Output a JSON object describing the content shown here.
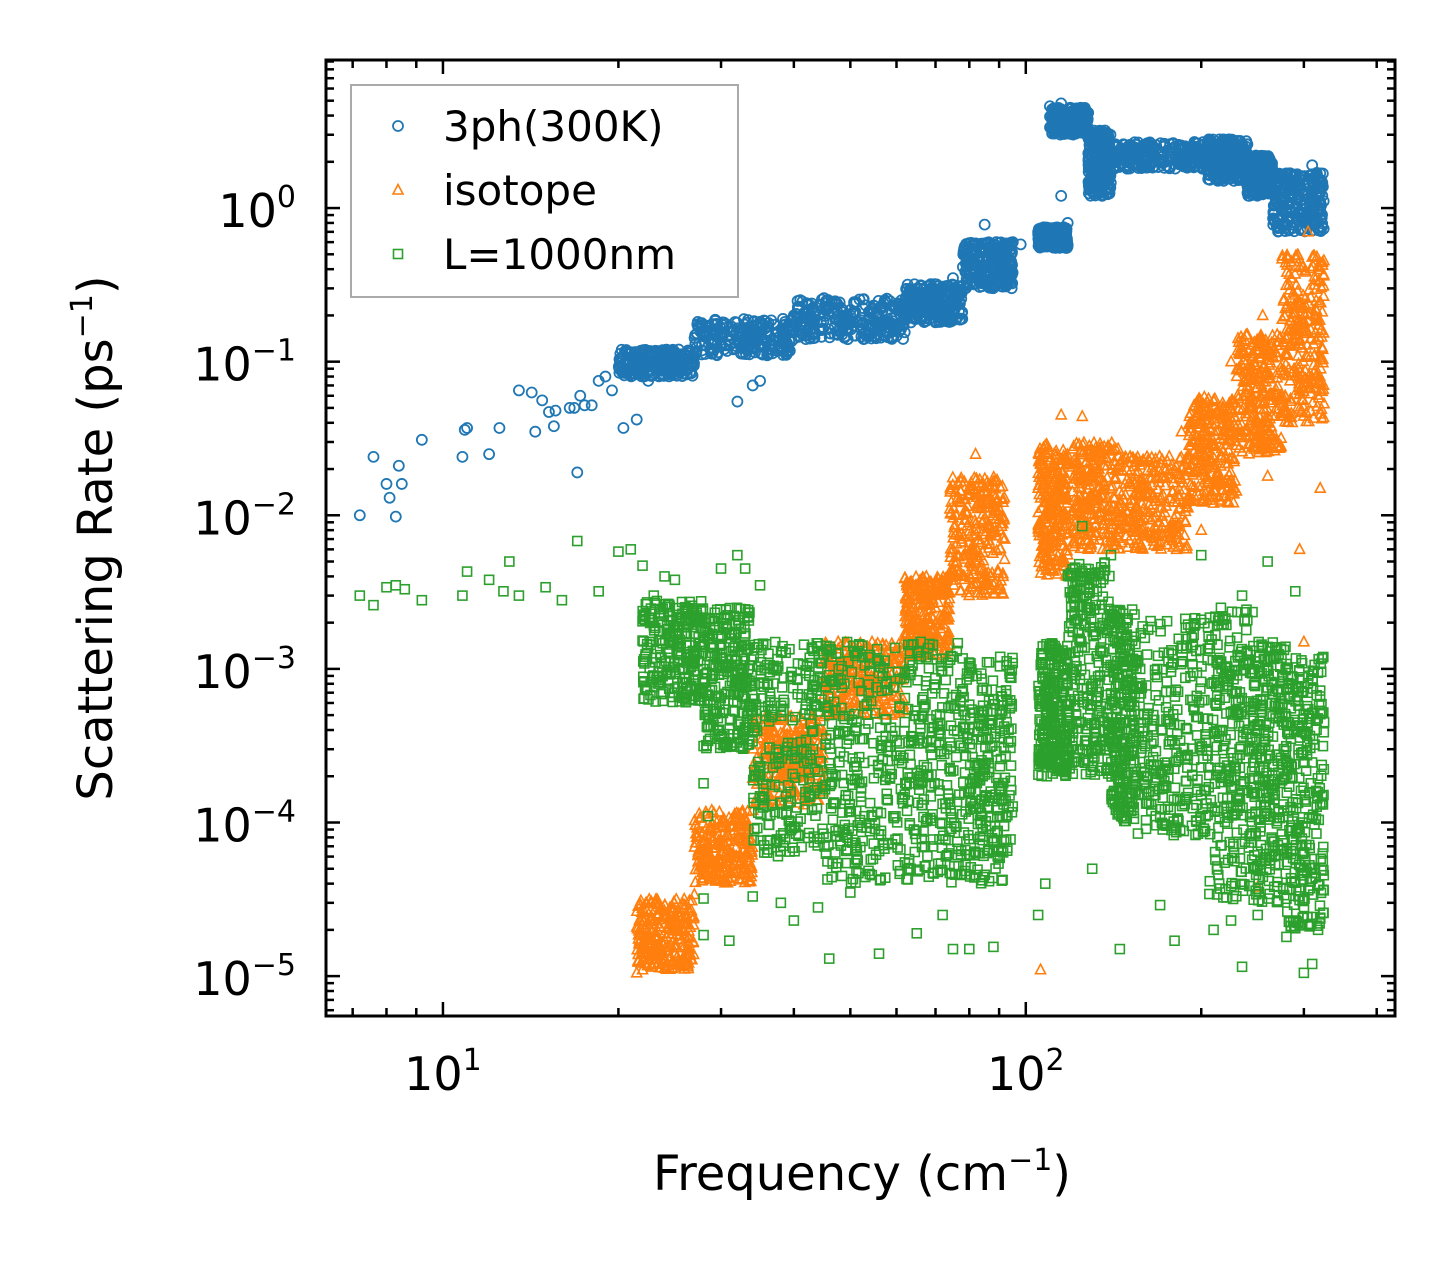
{
  "chart_data": {
    "type": "scatter",
    "title": "",
    "xlabel": "Frequency (cm",
    "xlabel_sup": "−1",
    "xlabel_end": ")",
    "ylabel": "Scattering Rate (ps",
    "ylabel_sup": "−1",
    "ylabel_end": ")",
    "xscale": "log",
    "yscale": "log",
    "xlim": [
      6.3,
      430
    ],
    "ylim": [
      5.5e-06,
      9.2
    ],
    "x_ticks": [
      {
        "value": 10,
        "base": "10",
        "exp": "1"
      },
      {
        "value": 100,
        "base": "10",
        "exp": "2"
      }
    ],
    "y_ticks": [
      {
        "value": 1,
        "base": "10",
        "exp": "0"
      },
      {
        "value": 0.1,
        "base": "10",
        "exp": "−1"
      },
      {
        "value": 0.01,
        "base": "10",
        "exp": "−2"
      },
      {
        "value": 0.001,
        "base": "10",
        "exp": "−3"
      },
      {
        "value": 0.0001,
        "base": "10",
        "exp": "−4"
      },
      {
        "value": 1e-05,
        "base": "10",
        "exp": "−5"
      }
    ],
    "legend_position": "top-left",
    "series": [
      {
        "name": "3ph(300K)",
        "marker": "circle",
        "color": "#1f77b4",
        "points": [
          [
            7.2,
            0.01
          ],
          [
            7.6,
            0.024
          ],
          [
            8.0,
            0.016
          ],
          [
            8.1,
            0.013
          ],
          [
            8.3,
            0.0098
          ],
          [
            8.4,
            0.021
          ],
          [
            8.5,
            0.016
          ],
          [
            9.2,
            0.031
          ],
          [
            10.8,
            0.024
          ],
          [
            10.9,
            0.036
          ],
          [
            11.0,
            0.037
          ],
          [
            12.0,
            0.025
          ],
          [
            12.5,
            0.037
          ],
          [
            13.5,
            0.065
          ],
          [
            14.2,
            0.063
          ],
          [
            14.4,
            0.035
          ],
          [
            14.8,
            0.056
          ],
          [
            15.2,
            0.047
          ],
          [
            15.6,
            0.048
          ],
          [
            15.5,
            0.038
          ],
          [
            16.5,
            0.05
          ],
          [
            16.8,
            0.05
          ],
          [
            17.2,
            0.06
          ],
          [
            17.5,
            0.052
          ],
          [
            18.0,
            0.052
          ],
          [
            17.0,
            0.019
          ],
          [
            18.5,
            0.075
          ],
          [
            19.0,
            0.08
          ],
          [
            19.5,
            0.065
          ],
          [
            20.4,
            0.037
          ],
          [
            21.5,
            0.042
          ],
          [
            22.5,
            0.075
          ],
          [
            24.0,
            0.09
          ],
          [
            26.0,
            0.11
          ],
          [
            29.0,
            0.13
          ],
          [
            32.0,
            0.055
          ],
          [
            34.0,
            0.07
          ],
          [
            35.0,
            0.075
          ],
          [
            36.0,
            0.17
          ],
          [
            40.0,
            0.2
          ],
          [
            45.0,
            0.22
          ],
          [
            50.0,
            0.2
          ],
          [
            55.0,
            0.23
          ],
          [
            60.0,
            0.2
          ],
          [
            65.0,
            0.25
          ],
          [
            70.0,
            0.29
          ],
          [
            75.0,
            0.35
          ],
          [
            80.0,
            0.45
          ],
          [
            85.0,
            0.78
          ],
          [
            90.0,
            0.55
          ],
          [
            95.0,
            0.6
          ],
          [
            98.0,
            0.58
          ],
          [
            105.0,
            0.7
          ],
          [
            108.0,
            0.6
          ],
          [
            112.0,
            0.65
          ],
          [
            115.0,
            1.2
          ],
          [
            118.0,
            0.8
          ],
          [
            110.0,
            4.6
          ],
          [
            115.0,
            4.8
          ],
          [
            125.0,
            3.5
          ],
          [
            130.0,
            2.8
          ],
          [
            135.0,
            1.6
          ],
          [
            150.0,
            2.5
          ],
          [
            165.0,
            2.0
          ],
          [
            180.0,
            2.5
          ],
          [
            200.0,
            2.1
          ],
          [
            215.0,
            2.8
          ],
          [
            225.0,
            1.8
          ],
          [
            240.0,
            2.6
          ],
          [
            255.0,
            1.4
          ],
          [
            270.0,
            1.1
          ],
          [
            290.0,
            1.3
          ],
          [
            305.0,
            0.95
          ],
          [
            310.0,
            1.9
          ],
          [
            320.0,
            1.1
          ]
        ],
        "bands": [
          [
            20,
            27,
            0.08,
            0.12
          ],
          [
            27,
            40,
            0.11,
            0.19
          ],
          [
            40,
            62,
            0.14,
            0.26
          ],
          [
            62,
            78,
            0.18,
            0.32
          ],
          [
            78,
            95,
            0.3,
            0.6
          ],
          [
            105,
            118,
            0.55,
            0.75
          ],
          [
            110,
            128,
            3.0,
            4.5
          ],
          [
            128,
            140,
            1.2,
            3.2
          ],
          [
            140,
            205,
            1.8,
            2.7
          ],
          [
            205,
            240,
            1.5,
            2.8
          ],
          [
            240,
            265,
            1.2,
            2.2
          ],
          [
            265,
            325,
            0.7,
            1.7
          ]
        ]
      },
      {
        "name": "isotope",
        "marker": "triangle",
        "color": "#ff7f0e",
        "points": [
          [
            21.5,
            1.05e-05
          ],
          [
            22.0,
            1.1e-05
          ],
          [
            23.0,
            1.4e-05
          ],
          [
            24.0,
            1.9e-05
          ],
          [
            25.0,
            2.4e-05
          ],
          [
            26.0,
            2.9e-05
          ],
          [
            27.0,
            3.4e-05
          ],
          [
            28.0,
            4.3e-05
          ],
          [
            29.0,
            5.5e-05
          ],
          [
            30.0,
            5.5e-05
          ],
          [
            31.0,
            6.5e-05
          ],
          [
            32.0,
            8e-05
          ],
          [
            33.0,
            9.5e-05
          ],
          [
            34.0,
            0.00012
          ],
          [
            36.0,
            0.00016
          ],
          [
            38.0,
            0.0002
          ],
          [
            40.0,
            0.00028
          ],
          [
            44.0,
            0.0004
          ],
          [
            50.0,
            0.0006
          ],
          [
            58.0,
            0.0011
          ],
          [
            64.0,
            0.0021
          ],
          [
            70.0,
            0.0032
          ],
          [
            75.0,
            0.006
          ],
          [
            80.0,
            0.009
          ],
          [
            82.0,
            0.025
          ],
          [
            88.0,
            0.012
          ],
          [
            92.0,
            0.007
          ],
          [
            106.0,
            1.1e-05
          ],
          [
            108.0,
            0.008
          ],
          [
            112.0,
            0.025
          ],
          [
            115.0,
            0.045
          ],
          [
            120.0,
            0.01
          ],
          [
            125.0,
            0.044
          ],
          [
            130.0,
            0.02
          ],
          [
            140.0,
            0.015
          ],
          [
            145.0,
            0.012
          ],
          [
            165.0,
            0.008
          ],
          [
            185.0,
            0.035
          ],
          [
            200.0,
            0.008
          ],
          [
            210.0,
            0.012
          ],
          [
            225.0,
            0.1
          ],
          [
            240.0,
            0.15
          ],
          [
            255.0,
            0.2
          ],
          [
            260.0,
            0.018
          ],
          [
            270.0,
            0.15
          ],
          [
            285.0,
            0.35
          ],
          [
            295.0,
            0.006
          ],
          [
            305.0,
            0.7
          ],
          [
            315.0,
            0.25
          ],
          [
            320.0,
            0.015
          ],
          [
            300.0,
            0.0015
          ],
          [
            250.0,
            3.8e-05
          ]
        ],
        "bands": [
          [
            21.5,
            27,
            1.1e-05,
            3.2e-05
          ],
          [
            27,
            34,
            4e-05,
            0.00012
          ],
          [
            34,
            45,
            0.00013,
            0.0005
          ],
          [
            45,
            62,
            0.0005,
            0.0015
          ],
          [
            62,
            74,
            0.0012,
            0.004
          ],
          [
            74,
            92,
            0.003,
            0.018
          ],
          [
            105,
            118,
            0.004,
            0.03
          ],
          [
            120,
            145,
            0.006,
            0.03
          ],
          [
            145,
            190,
            0.006,
            0.025
          ],
          [
            190,
            230,
            0.012,
            0.06
          ],
          [
            230,
            275,
            0.025,
            0.15
          ],
          [
            275,
            325,
            0.04,
            0.5
          ]
        ]
      },
      {
        "name": "L=1000nm",
        "marker": "square",
        "color": "#2ca02c",
        "points": [
          [
            7.2,
            0.003
          ],
          [
            7.6,
            0.0026
          ],
          [
            8.0,
            0.0034
          ],
          [
            8.3,
            0.0035
          ],
          [
            8.6,
            0.0033
          ],
          [
            9.2,
            0.0028
          ],
          [
            10.8,
            0.003
          ],
          [
            11.0,
            0.0043
          ],
          [
            12.0,
            0.0038
          ],
          [
            12.7,
            0.0032
          ],
          [
            13.0,
            0.005
          ],
          [
            13.5,
            0.003
          ],
          [
            15.0,
            0.0034
          ],
          [
            16.0,
            0.0028
          ],
          [
            17.0,
            0.0068
          ],
          [
            18.5,
            0.0032
          ],
          [
            20.0,
            0.0058
          ],
          [
            21.0,
            0.006
          ],
          [
            22.0,
            0.0047
          ],
          [
            23.0,
            0.003
          ],
          [
            24.0,
            0.004
          ],
          [
            25.0,
            0.0038
          ],
          [
            26.0,
            0.0025
          ],
          [
            27.0,
            0.0021
          ],
          [
            28.0,
            0.0015
          ],
          [
            28.0,
            0.00018
          ],
          [
            28.5,
            0.00011
          ],
          [
            28.0,
            3.2e-05
          ],
          [
            28.0,
            1.85e-05
          ],
          [
            31.0,
            1.7e-05
          ],
          [
            30.0,
            0.0045
          ],
          [
            32.0,
            0.0055
          ],
          [
            33.0,
            0.0045
          ],
          [
            35.0,
            0.0035
          ],
          [
            34.0,
            3.3e-05
          ],
          [
            38.0,
            3e-05
          ],
          [
            40.0,
            2.3e-05
          ],
          [
            44.0,
            2.8e-05
          ],
          [
            46.0,
            1.3e-05
          ],
          [
            50.0,
            3.5e-05
          ],
          [
            56.0,
            1.4e-05
          ],
          [
            65.0,
            1.9e-05
          ],
          [
            72.0,
            2.5e-05
          ],
          [
            75.0,
            1.5e-05
          ],
          [
            80.0,
            1.5e-05
          ],
          [
            88.0,
            1.55e-05
          ],
          [
            105.0,
            2.5e-05
          ],
          [
            108.0,
            4e-05
          ],
          [
            130.0,
            5e-05
          ],
          [
            145.0,
            1.5e-05
          ],
          [
            170.0,
            2.9e-05
          ],
          [
            180.0,
            1.7e-05
          ],
          [
            210.0,
            2e-05
          ],
          [
            225.0,
            2.3e-05
          ],
          [
            235.0,
            1.15e-05
          ],
          [
            250.0,
            2.5e-05
          ],
          [
            280.0,
            1.8e-05
          ],
          [
            300.0,
            1.05e-05
          ],
          [
            310.0,
            1.2e-05
          ],
          [
            320.0,
            2.4e-05
          ],
          [
            125.0,
            0.0085
          ],
          [
            140.0,
            0.0055
          ],
          [
            200.0,
            0.0055
          ],
          [
            235.0,
            0.003
          ],
          [
            260.0,
            0.005
          ],
          [
            290.0,
            0.0032
          ],
          [
            325.0,
            0.00045
          ]
        ],
        "bands": [
          [
            22,
            28,
            0.0006,
            0.0028
          ],
          [
            28,
            34,
            0.0003,
            0.0025
          ],
          [
            34,
            45,
            6e-05,
            0.0015
          ],
          [
            45,
            60,
            4e-05,
            0.0015
          ],
          [
            60,
            78,
            4e-05,
            0.0015
          ],
          [
            78,
            95,
            4e-05,
            0.0012
          ],
          [
            105,
            118,
            0.0002,
            0.0015
          ],
          [
            118,
            140,
            0.0002,
            0.005
          ],
          [
            140,
            155,
            0.0001,
            0.0025
          ],
          [
            155,
            205,
            8e-05,
            0.0022
          ],
          [
            205,
            245,
            3e-05,
            0.0025
          ],
          [
            245,
            280,
            3e-05,
            0.0015
          ],
          [
            280,
            325,
            2e-05,
            0.0012
          ]
        ]
      }
    ]
  }
}
